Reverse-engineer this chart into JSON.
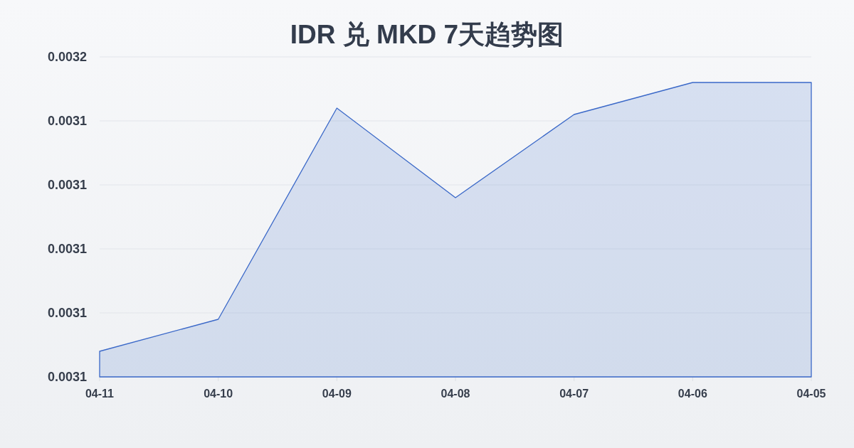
{
  "chart_data": {
    "type": "area",
    "title": "IDR 兑 MKD 7天趋势图",
    "categories": [
      "04-11",
      "04-10",
      "04-09",
      "04-08",
      "04-07",
      "04-06",
      "04-05"
    ],
    "series": [
      {
        "color": "#3a68c8",
        "values": [
          0.003104,
          0.003109,
          0.003142,
          0.003128,
          0.003141,
          0.003146,
          0.003146
        ]
      }
    ],
    "ylim": [
      0.0031,
      0.00315
    ],
    "yticks": [
      0.0031,
      {
        "value": 0.00311,
        "label": "0.0031"
      },
      {
        "value": 0.00312,
        "label": "0.0031"
      },
      {
        "value": 0.00313,
        "label": "0.0031"
      },
      {
        "value": 0.00314,
        "label": "0.0031"
      },
      {
        "value": 0.00315,
        "label": "0.0032"
      }
    ],
    "grid": "y"
  }
}
